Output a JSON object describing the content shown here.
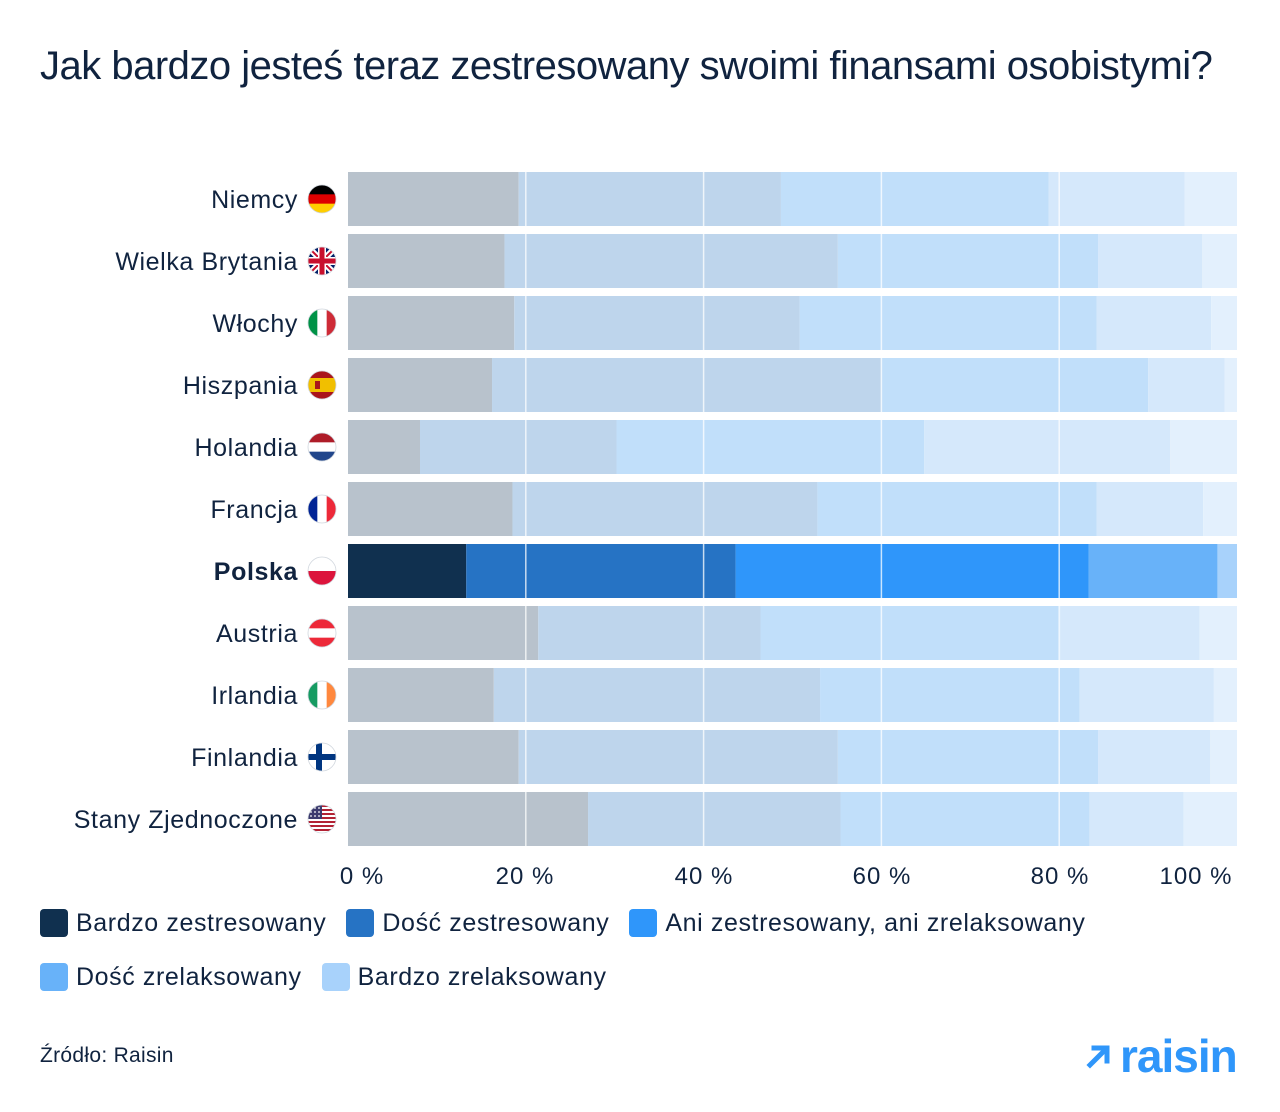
{
  "title": "Jak bardzo jesteś teraz zestresowany swoimi finansami osobistymi?",
  "source": "Źródło: Raisin",
  "brand": {
    "name": "raisin",
    "icon": "arrow-up-right-icon",
    "color": "#2f96fa"
  },
  "colors": {
    "highlight": [
      "#10304f",
      "#2673c4",
      "#2f96fa",
      "#68b2f9",
      "#a8d2fb"
    ],
    "muted": [
      "#b8c2cc",
      "#bed5ec",
      "#c1dffa",
      "#d5e8fb",
      "#e3f0fd"
    ]
  },
  "legend": [
    {
      "label": "Bardzo zestresowany",
      "color": "#10304f"
    },
    {
      "label": "Dość zestresowany",
      "color": "#2673c4"
    },
    {
      "label": "Ani zestresowany, ani zrelaksowany",
      "color": "#2f96fa"
    },
    {
      "label": "Dość zrelaksowany",
      "color": "#68b2f9"
    },
    {
      "label": "Bardzo zrelaksowany",
      "color": "#a8d2fb"
    }
  ],
  "chart_data": {
    "type": "bar",
    "orientation": "horizontal",
    "stacked": true,
    "title": "Jak bardzo jesteś teraz zestresowany swoimi finansami osobistymi?",
    "xlim": [
      0,
      100
    ],
    "xticks": [
      "0 %",
      "20 %",
      "40 %",
      "60 %",
      "80 %",
      "100 %"
    ],
    "grid": true,
    "legend_position": "bottom",
    "highlight_category": "Polska",
    "categories": [
      "Niemcy",
      "Wielka Brytania",
      "Włochy",
      "Hiszpania",
      "Holandia",
      "Francja",
      "Polska",
      "Austria",
      "Irlandia",
      "Finlandia",
      "Stany Zjednoczone"
    ],
    "flags": [
      "germany-flag-icon",
      "uk-flag-icon",
      "italy-flag-icon",
      "spain-flag-icon",
      "netherlands-flag-icon",
      "france-flag-icon",
      "poland-flag-icon",
      "austria-flag-icon",
      "ireland-flag-icon",
      "finland-flag-icon",
      "usa-flag-icon"
    ],
    "series": [
      {
        "name": "Bardzo zestresowany",
        "values": [
          19.2,
          17.6,
          18.7,
          16.2,
          8.1,
          18.5,
          13.3,
          21.4,
          16.4,
          19.2,
          27.0
        ]
      },
      {
        "name": "Dość zestresowany",
        "values": [
          29.5,
          37.5,
          32.1,
          43.8,
          22.1,
          34.3,
          30.3,
          25.0,
          36.7,
          35.9,
          28.4
        ]
      },
      {
        "name": "Ani zestresowany, ani zrelaksowany",
        "values": [
          30.1,
          29.3,
          33.4,
          30.0,
          34.6,
          31.4,
          39.7,
          33.7,
          29.2,
          29.3,
          28.0
        ]
      },
      {
        "name": "Dość zrelaksowany",
        "values": [
          15.3,
          11.7,
          12.9,
          8.6,
          27.7,
          12.0,
          14.5,
          15.7,
          15.1,
          12.6,
          10.6
        ]
      },
      {
        "name": "Bardzo zrelaksowany",
        "values": [
          5.9,
          3.9,
          2.9,
          1.4,
          7.5,
          3.8,
          2.2,
          4.2,
          2.6,
          3.0,
          6.0
        ]
      }
    ]
  }
}
